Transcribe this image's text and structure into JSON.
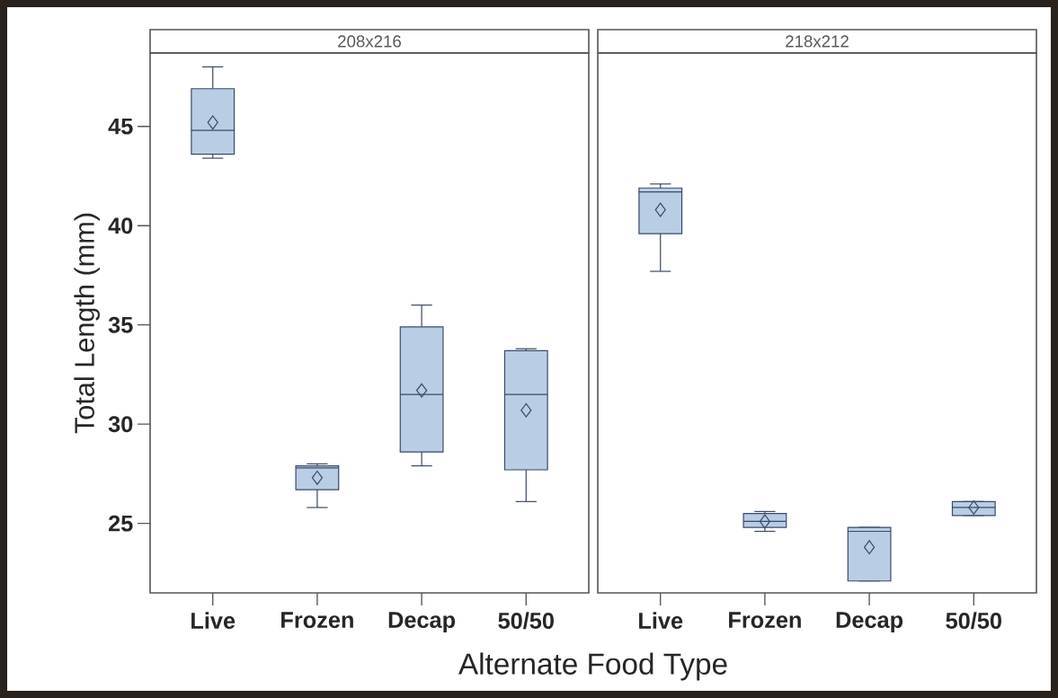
{
  "chart_data": [
    {
      "type": "box",
      "title": "208x216",
      "ylabel": "Total Length (mm)",
      "xlabel": "Alternate Food Type",
      "categories": [
        "Live",
        "Frozen",
        "Decap",
        "50/50"
      ],
      "ylim": [
        21.5,
        48.7
      ],
      "yticks": [
        25,
        30,
        35,
        40,
        45
      ],
      "series": [
        {
          "color": "#b9cde5",
          "boxes": [
            {
              "low": 43.4,
              "q1": 43.6,
              "median": 44.8,
              "q3": 46.9,
              "high": 48.0,
              "mean": 45.2
            },
            {
              "low": 25.8,
              "q1": 26.7,
              "median": 27.8,
              "q3": 27.9,
              "high": 28.0,
              "mean": 27.3
            },
            {
              "low": 27.9,
              "q1": 28.6,
              "median": 31.5,
              "q3": 34.9,
              "high": 36.0,
              "mean": 31.7
            },
            {
              "low": 26.1,
              "q1": 27.7,
              "median": 31.5,
              "q3": 33.7,
              "high": 33.8,
              "mean": 30.7
            }
          ]
        }
      ]
    },
    {
      "type": "box",
      "title": "218x212",
      "categories": [
        "Live",
        "Frozen",
        "Decap",
        "50/50"
      ],
      "ylim": [
        21.5,
        48.7
      ],
      "tick_labels": "x",
      "series": [
        {
          "color": "#b9cde5",
          "boxes": [
            {
              "low": 37.7,
              "q1": 39.6,
              "median": 41.7,
              "q3": 41.9,
              "high": 42.1,
              "mean": 40.8
            },
            {
              "low": 24.6,
              "q1": 24.8,
              "median": 25.1,
              "q3": 25.5,
              "high": 25.6,
              "mean": 25.1
            },
            {
              "low": 22.1,
              "q1": 22.1,
              "median": 24.6,
              "q3": 24.8,
              "high": 24.8,
              "mean": 23.8
            },
            {
              "low": 25.4,
              "q1": 25.4,
              "median": 25.8,
              "q3": 26.1,
              "high": 26.1,
              "mean": 25.8
            }
          ]
        }
      ]
    }
  ]
}
